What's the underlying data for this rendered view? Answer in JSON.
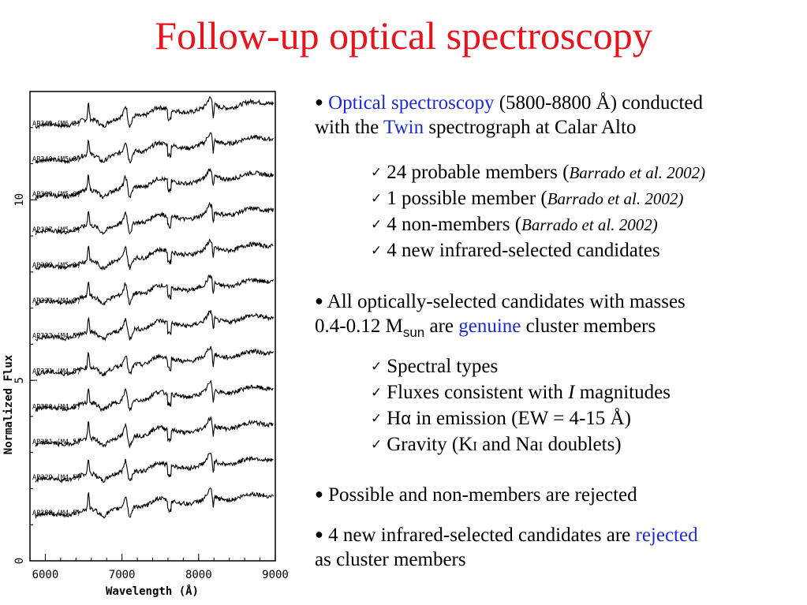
{
  "title": "Follow-up optical spectroscopy",
  "bullets": {
    "b1": {
      "part1": "Optical spectroscopy",
      "part2": " (5800-8800 Å) conducted",
      "part3": "with the ",
      "part4": "Twin",
      "part5": " spectrograph at Calar Alto"
    },
    "checks1": [
      {
        "text": "24 probable members (",
        "ref": "Barrado et al. 2002)"
      },
      {
        "text": "1 possible member (",
        "ref": "Barrado et al. 2002)"
      },
      {
        "text": "4 non-members (",
        "ref": "Barrado et al. 2002)"
      },
      {
        "text": "4 new infrared-selected candidates",
        "ref": ""
      }
    ],
    "b2": {
      "part1": "All optically-selected candidates with masses",
      "part2": "0.4-0.12 M",
      "sub": "sun",
      "part3": " are ",
      "part4": "genuine",
      "part5": " cluster members"
    },
    "checks2": {
      "c1": "Spectral types",
      "c2a": "Fluxes consistent with ",
      "c2b": "I",
      "c2c": " magnitudes",
      "c3a": "H",
      "c3b": "α",
      "c3c": " in emission (EW = 4-15 Å)",
      "c4a": "Gravity (K",
      "c4b": "I",
      "c4c": " and Na",
      "c4d": "I",
      "c4e": " doublets)"
    },
    "b3": "Possible and non-members are rejected",
    "b4": {
      "part1": "4 new infrared-selected candidates are ",
      "part2": "rejected",
      "part3": "as cluster members"
    }
  },
  "chart_data": {
    "type": "line",
    "xlabel": "Wavelength (Å)",
    "ylabel": "Normalized Flux",
    "xlim": [
      5800,
      9000
    ],
    "ylim": [
      0,
      13
    ],
    "xticks": [
      "6000",
      "7000",
      "8000",
      "9000"
    ],
    "yticks": [
      "0",
      "5",
      "10"
    ],
    "grid": false,
    "series": [
      {
        "name": "AP341 (M6.0)"
      },
      {
        "name": "AP340 (M5.0)"
      },
      {
        "name": "AP339 (M5.0)"
      },
      {
        "name": "AP337 (M5.0)"
      },
      {
        "name": "AP309 (M5.0)"
      },
      {
        "name": "AP333 (M4.5)"
      },
      {
        "name": "AP323 (M4.5)"
      },
      {
        "name": "AP331 (M4.5)"
      },
      {
        "name": "AP330 (M4.5)"
      },
      {
        "name": "AP321 (M4.5)"
      },
      {
        "name": "AP329 (M4.5)"
      },
      {
        "name": "AP288 (M4.5)"
      }
    ],
    "colors": {
      "title": "#e8141c",
      "highlight": "#1c2bd6"
    }
  }
}
